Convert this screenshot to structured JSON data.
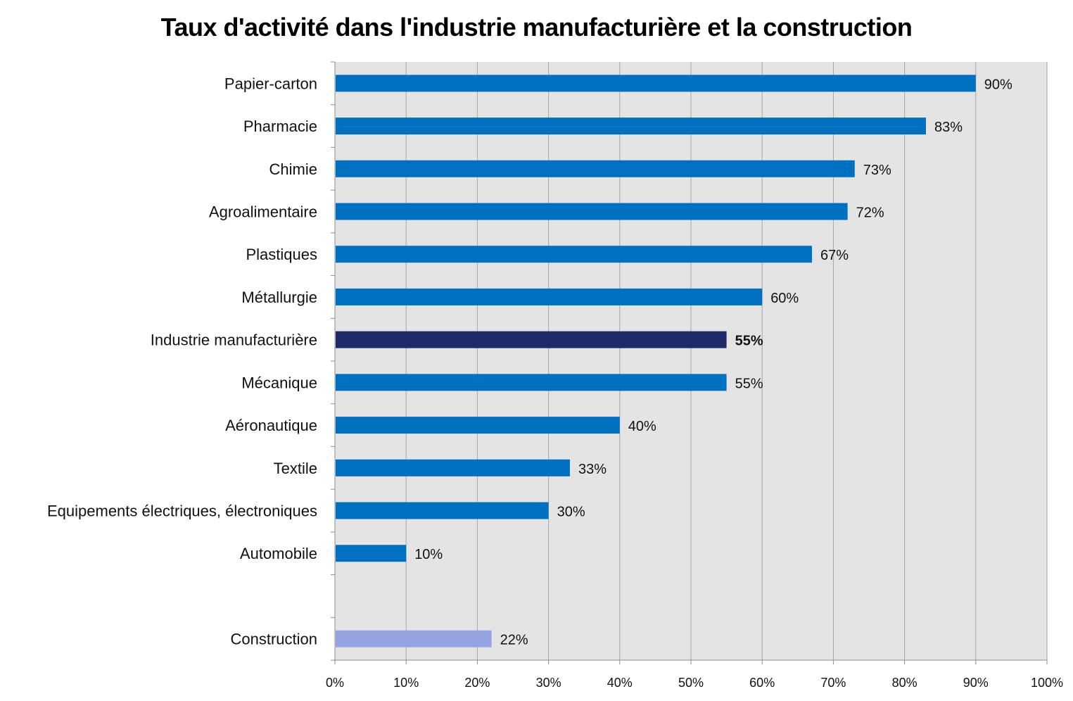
{
  "chart_data": {
    "type": "bar",
    "orientation": "horizontal",
    "title": "Taux d'activité dans l'industrie manufacturière et la construction",
    "categories": [
      "Papier-carton",
      "Pharmacie",
      "Chimie",
      "Agroalimentaire",
      "Plastiques",
      "Métallurgie",
      "Industrie manufacturière",
      "Mécanique",
      "Aéronautique",
      "Textile",
      "Equipements électriques, électroniques",
      "Automobile",
      "",
      "Construction"
    ],
    "values": [
      90,
      83,
      73,
      72,
      67,
      60,
      55,
      55,
      40,
      33,
      30,
      10,
      null,
      22
    ],
    "value_labels": [
      "90%",
      "83%",
      "73%",
      "72%",
      "67%",
      "60%",
      "55%",
      "55%",
      "40%",
      "33%",
      "30%",
      "10%",
      "",
      "22%"
    ],
    "bold_labels": [
      false,
      false,
      false,
      false,
      false,
      false,
      true,
      false,
      false,
      false,
      false,
      false,
      false,
      false
    ],
    "bar_colors": [
      "#0070c0",
      "#0070c0",
      "#0070c0",
      "#0070c0",
      "#0070c0",
      "#0070c0",
      "#1f2a68",
      "#0070c0",
      "#0070c0",
      "#0070c0",
      "#0070c0",
      "#0070c0",
      "#0070c0",
      "#96a3e2"
    ],
    "x_ticks": [
      "0%",
      "10%",
      "20%",
      "30%",
      "40%",
      "50%",
      "60%",
      "70%",
      "80%",
      "90%",
      "100%"
    ],
    "xlim": [
      0,
      100
    ],
    "xlabel": "",
    "ylabel": "",
    "grid": true,
    "plot_background": "#e4e4e4",
    "grid_color": "#a6a6a6",
    "legend": "none"
  }
}
